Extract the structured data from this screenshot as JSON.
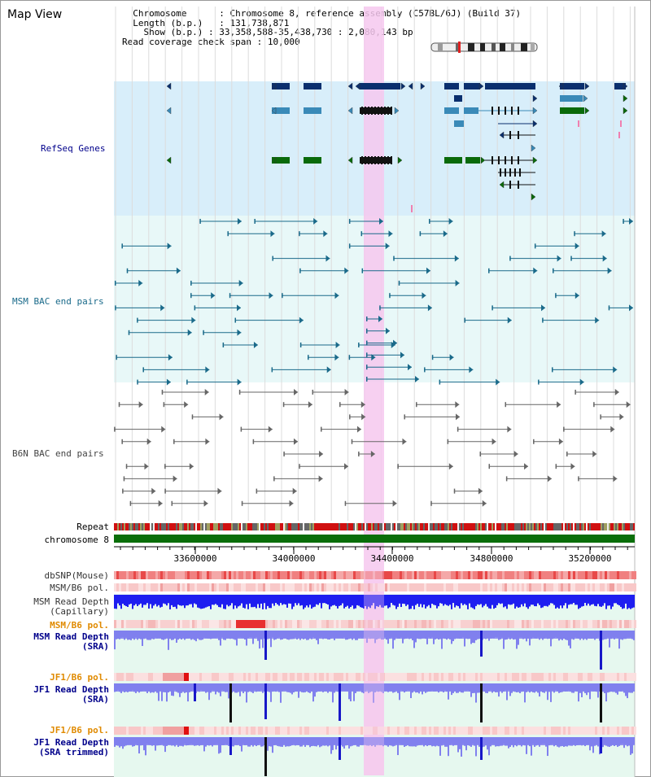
{
  "app": {
    "title": "Map View"
  },
  "info": {
    "chromosome_label": "Chromosome",
    "chromosome_value": "Chromosome 8, reference assembly (C57BL/6J) (Build 37)",
    "length_label": "Length (b.p.)",
    "length_value": "131,738,871",
    "show_label": "Show (b.p.)",
    "show_value": "33,358,588-35,438,730 : 2,080,143 bp",
    "coverage_label": "Read coverage check span",
    "coverage_value": "10,000"
  },
  "tracks": {
    "refseq": "RefSeq Genes",
    "msm_bac": "MSM BAC end pairs",
    "b6n_bac": "B6N BAC end pairs",
    "repeat": "Repeat",
    "chromosome": "chromosome 8",
    "dbsnp": "dbSNP(Mouse)",
    "msm_b6_pol": "MSM/B6 pol.",
    "msm_read_depth_cap_1": "MSM Read Depth",
    "msm_read_depth_cap_2": "(Capillary)",
    "msm_b6_pol_2": "MSM/B6 pol.",
    "msm_read_depth_sra_1": "MSM Read Depth",
    "msm_read_depth_sra_2": "(SRA)",
    "jf1_b6_pol": "JF1/B6 pol.",
    "jf1_read_depth_sra_1": "JF1 Read Depth",
    "jf1_read_depth_sra_2": "(SRA)",
    "jf1_b6_pol_2": "JF1/B6 pol.",
    "jf1_read_depth_trim_1": "JF1 Read Depth",
    "jf1_read_depth_trim_2": "(SRA trimmed)"
  },
  "axis": {
    "ticks": [
      "33600000",
      "34000000",
      "34400000",
      "34800000",
      "35200000"
    ]
  },
  "colors": {
    "refseq_bg": "#d8eefa",
    "bac_bg": "#e8f8f8",
    "highlight": "#f6c8ee",
    "refseq_dark": "#0a2f6e",
    "refseq_mid": "#3a8ab8",
    "refseq_green": "#0a6a0a",
    "msm_bac": "#1a6a8a",
    "b6n_bac": "#666666",
    "chromosome": "#0a6e0a",
    "orange_label": "#e08a00",
    "blue_label": "#00008b",
    "msm_label": "#1a6a8a"
  }
}
